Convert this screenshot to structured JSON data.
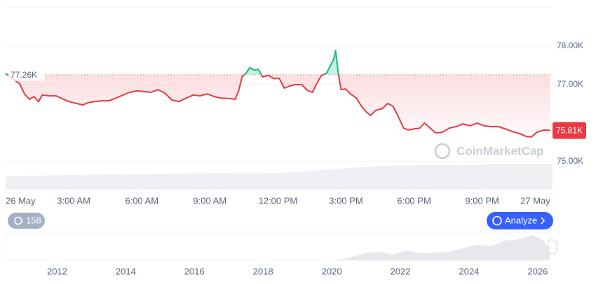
{
  "chart_data": {
    "type": "line",
    "series": [
      {
        "color": "#ea3943",
        "x": [
          0,
          0.62,
          0.84,
          1.05,
          1.24,
          1.45,
          1.61,
          1.92,
          2.23,
          2.54,
          2.85,
          3.15,
          3.4,
          3.62,
          3.93,
          4.24,
          4.55,
          4.86,
          5.17,
          5.47,
          5.78,
          6.09,
          6.4,
          6.71,
          7.02,
          7.33,
          7.64,
          7.95,
          8.26,
          8.57,
          8.88,
          9.19,
          9.5,
          9.81,
          10.12,
          10.27,
          10.42,
          10.58,
          10.76,
          10.95,
          11.14,
          11.32,
          11.57,
          11.82,
          12.06,
          12.28,
          12.5,
          12.74,
          13.05,
          13.3,
          13.52,
          13.73,
          13.92,
          14.14,
          14.29,
          14.45,
          14.54,
          14.66,
          14.78,
          14.97,
          15.22,
          15.46,
          15.68,
          15.9,
          16.08,
          16.3,
          16.61,
          16.83,
          17.07,
          17.32,
          17.54,
          17.75,
          18,
          18.25,
          18.46,
          18.68,
          18.93,
          19.24,
          19.55,
          19.85,
          20.16,
          20.47,
          20.78,
          21.09,
          21.4,
          21.71,
          22.02,
          22.33,
          22.64,
          22.95,
          23.17,
          23.41,
          23.71,
          24
        ],
        "values": [
          77290,
          77020,
          76750,
          76620,
          76690,
          76560,
          76730,
          76710,
          76710,
          76620,
          76550,
          76510,
          76470,
          76530,
          76560,
          76580,
          76580,
          76650,
          76730,
          76800,
          76840,
          76820,
          76800,
          76870,
          76780,
          76600,
          76560,
          76650,
          76730,
          76710,
          76760,
          76690,
          76650,
          76640,
          76620,
          76840,
          77200,
          77290,
          77440,
          77380,
          77400,
          77200,
          77240,
          77160,
          77160,
          76910,
          76960,
          77000,
          77000,
          76850,
          76800,
          77050,
          77240,
          77290,
          77470,
          77650,
          77890,
          77290,
          76870,
          76890,
          76750,
          76650,
          76440,
          76290,
          76200,
          76330,
          76380,
          76510,
          76440,
          76150,
          75870,
          75820,
          75850,
          75870,
          76000,
          75890,
          75750,
          75760,
          75870,
          75910,
          75980,
          75930,
          76000,
          75930,
          75910,
          75910,
          75850,
          75780,
          75730,
          75650,
          75640,
          75760,
          75820,
          75810
        ]
      }
    ],
    "xlim": [
      0,
      24.1
    ],
    "xticks": [
      {
        "value": 0,
        "label": "26 May"
      },
      {
        "value": 3,
        "label": "3:00 AM"
      },
      {
        "value": 6,
        "label": "6:00 AM"
      },
      {
        "value": 9,
        "label": "9:00 AM"
      },
      {
        "value": 12,
        "label": "12:00 PM"
      },
      {
        "value": 15,
        "label": "3:00 PM"
      },
      {
        "value": 18,
        "label": "6:00 PM"
      },
      {
        "value": 21,
        "label": "9:00 PM"
      },
      {
        "value": 24,
        "label": "27 May"
      }
    ],
    "ylim": [
      74290,
      79020
    ],
    "yticks": [
      {
        "value": 75000,
        "label": "75.00K"
      },
      {
        "value": 77000,
        "label": "77.00K"
      },
      {
        "value": 78000,
        "label": "78.00K"
      }
    ],
    "reference_line": {
      "value": 77260,
      "label": "77.26K",
      "color_above": "#16c784"
    },
    "last_price": {
      "value": 75810,
      "label": "75.81K"
    },
    "grid": true
  },
  "navigator": {
    "xlim": [
      2010.5,
      2026.43
    ],
    "xticks": [
      2012,
      2014,
      2016,
      2018,
      2020,
      2022,
      2024,
      2026
    ]
  },
  "ui": {
    "history_count": 158,
    "analyze_button": "Analyze",
    "watermark": "CoinMarketCap"
  }
}
